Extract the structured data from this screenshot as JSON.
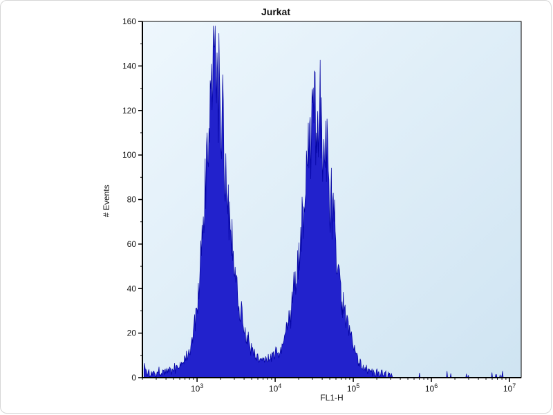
{
  "chart_data": {
    "type": "area",
    "title": "Jurkat",
    "xlabel": "FL1-H",
    "ylabel": "# Events",
    "x_scale": "log10",
    "xlim_log10": [
      2.3,
      7.15
    ],
    "ylim": [
      0,
      160
    ],
    "y_major_ticks": [
      0,
      20,
      40,
      60,
      80,
      100,
      120,
      140,
      160
    ],
    "y_minor_step": 10,
    "x_major_tick_exponents": [
      3,
      4,
      5,
      6,
      7
    ],
    "legend": "none",
    "grid": "off",
    "colors": {
      "fill": "#2222cc",
      "stroke": "#0000a0",
      "bg_top": "#eef7fd",
      "bg_bottom": "#cfe4f2",
      "axis": "#000000"
    },
    "noise": {
      "seed": 1337,
      "rel_amp": 0.22,
      "abs_amp": 2.0,
      "step_log10": 0.008
    },
    "envelope_points": [
      [
        2.32,
        6
      ],
      [
        2.36,
        2
      ],
      [
        2.45,
        2
      ],
      [
        2.55,
        3
      ],
      [
        2.65,
        3
      ],
      [
        2.75,
        5
      ],
      [
        2.85,
        8
      ],
      [
        2.92,
        14
      ],
      [
        3.0,
        30
      ],
      [
        3.05,
        52
      ],
      [
        3.1,
        80
      ],
      [
        3.15,
        108
      ],
      [
        3.2,
        132
      ],
      [
        3.23,
        144
      ],
      [
        3.27,
        134
      ],
      [
        3.31,
        120
      ],
      [
        3.36,
        100
      ],
      [
        3.42,
        72
      ],
      [
        3.48,
        50
      ],
      [
        3.54,
        34
      ],
      [
        3.6,
        22
      ],
      [
        3.68,
        14
      ],
      [
        3.76,
        10
      ],
      [
        3.84,
        8
      ],
      [
        3.92,
        8
      ],
      [
        4.0,
        10
      ],
      [
        4.08,
        14
      ],
      [
        4.16,
        22
      ],
      [
        4.24,
        38
      ],
      [
        4.32,
        60
      ],
      [
        4.4,
        88
      ],
      [
        4.46,
        105
      ],
      [
        4.52,
        118
      ],
      [
        4.56,
        125
      ],
      [
        4.6,
        114
      ],
      [
        4.66,
        98
      ],
      [
        4.72,
        78
      ],
      [
        4.78,
        58
      ],
      [
        4.84,
        40
      ],
      [
        4.92,
        24
      ],
      [
        5.0,
        13
      ],
      [
        5.08,
        7
      ],
      [
        5.16,
        4
      ],
      [
        5.25,
        2
      ],
      [
        5.35,
        1.5
      ],
      [
        5.5,
        1
      ],
      [
        5.65,
        0.6
      ],
      [
        5.85,
        0.3
      ],
      [
        6.1,
        0.15
      ],
      [
        6.5,
        0.1
      ],
      [
        7.1,
        0.1
      ]
    ],
    "peaks_summary": [
      {
        "center_x": 1700,
        "height": 144
      },
      {
        "center_x": 36000,
        "height": 125
      }
    ]
  }
}
